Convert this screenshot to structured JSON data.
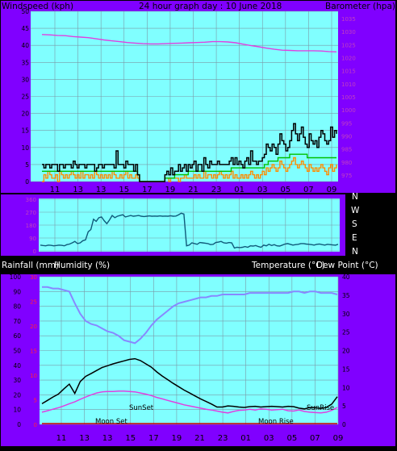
{
  "header": {
    "left_label": "Windspeed (kph)",
    "title": "24 hour graph day : 10 June 2018",
    "right_label": "Barometer (hpa)"
  },
  "direction_labels": [
    "N",
    "W",
    "S",
    "E",
    "N"
  ],
  "mid_header": {
    "rain_label": "Rainfall (mm)",
    "humidity_label": "Humidity (%)",
    "temp_label": "Temperature (°C)",
    "dew_label": "Dew Point (°C)"
  },
  "colors": {
    "frame": "#8000ff",
    "plot_bg": "#80ffff",
    "wind": "#000000",
    "gust": "#ff8c00",
    "average": "#00c000",
    "barometer": "#e040e0",
    "direction": "#105a7a",
    "humidity": "#8888ff",
    "temperature": "#000000",
    "dew_point": "#e040e0",
    "rainfall": "#cc0000"
  },
  "chart_data": [
    {
      "type": "line",
      "x_tick_labels": [
        "11",
        "13",
        "13",
        "15",
        "17",
        "19",
        "21",
        "23",
        "01",
        "03",
        "05",
        "07",
        "09"
      ],
      "y_left_ticks": [
        "50",
        "45",
        "40",
        "35",
        "30",
        "25",
        "20",
        "15",
        "10",
        "5",
        "0"
      ],
      "y_right_ticks": [
        "1035",
        "1030",
        "1025",
        "1020",
        "1015",
        "1010",
        "1005",
        "1000",
        "995",
        "990",
        "985",
        "980",
        "975"
      ],
      "ylim_left": [
        0,
        50
      ],
      "ylim_right": [
        975,
        1035
      ],
      "series": [
        {
          "name": "wind",
          "values": [
            5,
            4,
            5,
            5,
            4,
            5,
            5,
            5,
            3,
            5,
            5,
            4,
            5,
            5,
            5,
            4,
            6,
            5,
            4,
            5,
            5,
            5,
            4,
            5,
            5,
            5,
            5,
            3,
            4,
            5,
            5,
            4,
            5,
            5,
            5,
            5,
            5,
            4,
            9,
            5,
            5,
            5,
            4,
            6,
            5,
            5,
            5,
            3,
            5,
            2,
            0,
            0,
            0,
            0,
            0,
            0,
            0,
            0,
            0,
            0,
            0,
            0,
            0,
            2,
            3,
            2,
            4,
            2,
            3,
            3,
            5,
            3,
            4,
            5,
            3,
            5,
            4,
            5,
            6,
            3,
            5,
            5,
            3,
            7,
            5,
            4,
            6,
            5,
            5,
            5,
            6,
            5,
            5,
            5,
            5,
            5,
            6,
            7,
            5,
            7,
            5,
            6,
            5,
            4,
            6,
            7,
            5,
            9,
            6,
            6,
            5,
            6,
            6,
            7,
            8,
            11,
            10,
            9,
            11,
            10,
            8,
            11,
            14,
            12,
            11,
            9,
            10,
            12,
            15,
            17,
            14,
            12,
            14,
            16,
            13,
            11,
            10,
            14,
            12,
            11,
            12,
            10,
            13,
            15,
            14,
            12,
            11,
            12,
            16,
            13,
            15,
            14
          ]
        },
        {
          "name": "gust",
          "values": [
            0,
            2,
            1,
            3,
            2,
            1,
            1,
            2,
            0,
            3,
            2,
            1,
            2,
            1,
            2,
            3,
            2,
            1,
            2,
            1,
            3,
            1,
            2,
            2,
            1,
            2,
            1,
            3,
            2,
            1,
            2,
            1,
            2,
            1,
            2,
            1,
            3,
            2,
            1,
            1,
            2,
            1,
            2,
            3,
            1,
            2,
            1,
            1,
            2,
            1,
            0,
            0,
            0,
            0,
            0,
            0,
            0,
            0,
            0,
            0,
            0,
            0,
            0,
            1,
            1,
            0,
            1,
            1,
            1,
            1,
            0,
            1,
            1,
            2,
            1,
            1,
            1,
            1,
            2,
            1,
            2,
            1,
            1,
            3,
            1,
            2,
            2,
            1,
            2,
            1,
            2,
            3,
            2,
            1,
            2,
            1,
            2,
            3,
            1,
            2,
            1,
            1,
            2,
            1,
            2,
            1,
            2,
            3,
            2,
            1,
            2,
            1,
            2,
            3,
            2,
            4,
            3,
            4,
            5,
            4,
            3,
            4,
            6,
            5,
            4,
            3,
            4,
            5,
            6,
            7,
            5,
            4,
            5,
            6,
            5,
            4,
            3,
            5,
            4,
            3,
            4,
            3,
            4,
            5,
            4,
            3,
            2,
            4,
            5,
            3,
            4,
            5
          ]
        },
        {
          "name": "average",
          "values": [
            3,
            3,
            3,
            3,
            3,
            3,
            3,
            3,
            3,
            3,
            3,
            3,
            3,
            3,
            3,
            3,
            3,
            3,
            3,
            3,
            3,
            3,
            3,
            3,
            3,
            3,
            3,
            3,
            3,
            3,
            3,
            3,
            3,
            3,
            3,
            3,
            3,
            3,
            3,
            3,
            3,
            3,
            3,
            3,
            3,
            3,
            3,
            3,
            3,
            2,
            0,
            0,
            0,
            0,
            0,
            0,
            0,
            0,
            0,
            0,
            0,
            0,
            0,
            1,
            1,
            1,
            1,
            1,
            2,
            2,
            2,
            2,
            2,
            2,
            2,
            3,
            3,
            3,
            3,
            3,
            3,
            3,
            3,
            3,
            3,
            3,
            3,
            3,
            3,
            3,
            3,
            3,
            3,
            3,
            3,
            3,
            3,
            4,
            4,
            4,
            4,
            4,
            4,
            4,
            4,
            4,
            4,
            4,
            4,
            4,
            4,
            4,
            4,
            4,
            5,
            5,
            6,
            6,
            6,
            6,
            6,
            7,
            7,
            7,
            7,
            7,
            7,
            8,
            8,
            8,
            8,
            8,
            8,
            8,
            8,
            8,
            7,
            7,
            7,
            7,
            7,
            7,
            7,
            7,
            7,
            7,
            7,
            7,
            7,
            7,
            7,
            7
          ]
        },
        {
          "name": "barometer",
          "values": [
            1026.8,
            1026.7,
            1026.5,
            1026.4,
            1026.1,
            1025.9,
            1025.7,
            1025.3,
            1024.9,
            1024.6,
            1024.3,
            1024.0,
            1023.8,
            1023.6,
            1023.5,
            1023.5,
            1023.6,
            1023.7,
            1023.8,
            1023.9,
            1024.0,
            1024.1,
            1024.3,
            1024.3,
            1024.2,
            1023.9,
            1023.4,
            1022.9,
            1022.5,
            1022.0,
            1021.6,
            1021.3,
            1021.2,
            1021.1,
            1021.1,
            1021.1,
            1021.0,
            1020.8,
            1020.7
          ]
        }
      ]
    },
    {
      "type": "line",
      "y_tick_labels": [
        "360",
        "270",
        "180",
        "90",
        "0"
      ],
      "ylim": [
        0,
        360
      ],
      "series": [
        {
          "name": "direction",
          "values": [
            45,
            42,
            40,
            45,
            43,
            40,
            42,
            45,
            43,
            40,
            48,
            52,
            60,
            70,
            55,
            60,
            75,
            80,
            135,
            150,
            220,
            205,
            230,
            235,
            210,
            190,
            215,
            245,
            230,
            240,
            245,
            250,
            235,
            240,
            245,
            240,
            242,
            245,
            240,
            238,
            240,
            242,
            240,
            241,
            240,
            242,
            240,
            241,
            240,
            243,
            240,
            241,
            250,
            260,
            255,
            40,
            45,
            60,
            55,
            50,
            62,
            60,
            58,
            55,
            48,
            50,
            62,
            65,
            70,
            60,
            58,
            62,
            60,
            25,
            30,
            28,
            30,
            35,
            30,
            40,
            38,
            42,
            35,
            30,
            45,
            40,
            50,
            42,
            48,
            40,
            38,
            45,
            52,
            55,
            50,
            45,
            48,
            50,
            55,
            55,
            52,
            50,
            48,
            45,
            50,
            52,
            48,
            45,
            50,
            48,
            46,
            44,
            50
          ]
        }
      ]
    },
    {
      "type": "line",
      "y_left_ticks": [
        "100",
        "90",
        "80",
        "70",
        "60",
        "50",
        "40",
        "30",
        "20",
        "10",
        "0"
      ],
      "y_right_ticks": [
        "40",
        "35",
        "30",
        "25",
        "20",
        "15",
        "10",
        "5",
        "0"
      ],
      "rain_ticks": [
        "30",
        "25",
        "20",
        "15",
        "10",
        "5",
        "0"
      ],
      "ylim_left": [
        0,
        100
      ],
      "ylim_right": [
        0,
        40
      ],
      "markers": [
        "SunSet",
        "SunRise",
        "Moon Set",
        "Moon Rise"
      ],
      "series": [
        {
          "name": "humidity",
          "values": [
            93,
            93,
            92,
            92,
            91,
            90,
            82,
            75,
            70,
            68,
            67,
            65,
            63,
            62,
            60,
            57,
            56,
            55,
            58,
            62,
            67,
            71,
            74,
            77,
            80,
            82,
            83,
            84,
            85,
            86,
            86,
            87,
            87,
            88,
            88,
            88,
            88,
            88,
            89,
            89,
            89,
            89,
            89,
            89,
            89,
            89,
            90,
            90,
            89,
            90,
            90,
            89,
            89,
            89,
            88
          ]
        },
        {
          "name": "temperature",
          "values": [
            5.6,
            6.5,
            7.4,
            8.2,
            9.6,
            10.9,
            8.4,
            11.6,
            13.0,
            13.8,
            14.6,
            15.4,
            15.9,
            16.4,
            16.8,
            17.2,
            17.6,
            17.8,
            17.3,
            16.4,
            15.5,
            14.2,
            13.1,
            12.1,
            11.1,
            10.2,
            9.3,
            8.5,
            7.7,
            6.9,
            6.2,
            5.5,
            4.7,
            4.7,
            5.0,
            4.9,
            4.7,
            4.6,
            4.8,
            4.9,
            4.7,
            4.8,
            4.9,
            4.8,
            4.7,
            4.9,
            4.8,
            4.4,
            4.2,
            4.6,
            4.5,
            4.3,
            4.6,
            5.5,
            7.5
          ]
        },
        {
          "name": "dew_point",
          "values": [
            3.3,
            3.7,
            4.1,
            4.5,
            5.0,
            5.6,
            6.1,
            6.8,
            7.4,
            8.0,
            8.5,
            8.8,
            8.9,
            8.9,
            9.0,
            9.0,
            8.9,
            8.8,
            8.5,
            8.2,
            7.8,
            7.3,
            6.9,
            6.5,
            6.1,
            5.7,
            5.3,
            5.0,
            4.7,
            4.4,
            4.1,
            3.9,
            3.6,
            3.3,
            3.1,
            3.5,
            3.8,
            3.9,
            4.1,
            3.9,
            4.2,
            4.1,
            3.9,
            4.0,
            4.1,
            3.7,
            3.6,
            3.9,
            3.5,
            3.3,
            3.2,
            3.1,
            3.3,
            3.8,
            4.6
          ]
        },
        {
          "name": "rainfall",
          "values": [
            0,
            0,
            0,
            0,
            0,
            0,
            0,
            0,
            0,
            0,
            0,
            0,
            0,
            0,
            0,
            0,
            0,
            0,
            0,
            0,
            0,
            0,
            0,
            0,
            0,
            0,
            0,
            0,
            0,
            0,
            0,
            0,
            0,
            0,
            0,
            0,
            0,
            0,
            0,
            0,
            0,
            0,
            0,
            0,
            0,
            0,
            0,
            0,
            0,
            0,
            0,
            0,
            0,
            0,
            0
          ]
        }
      ]
    }
  ]
}
